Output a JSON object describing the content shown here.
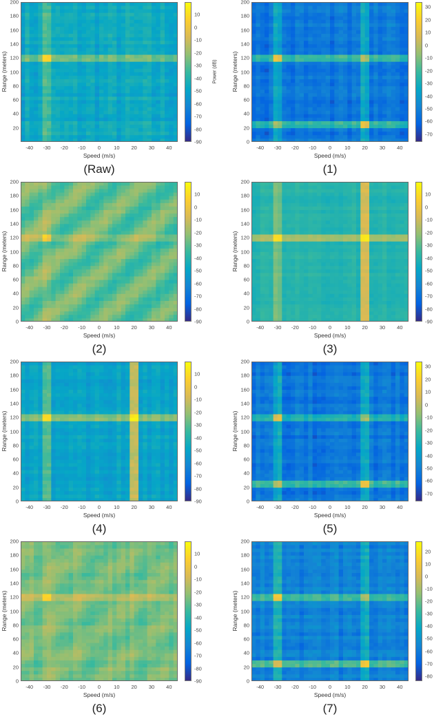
{
  "chart_data": [
    {
      "type": "heatmap",
      "caption": "(Raw)",
      "xlabel": "Speed (m/s)",
      "ylabel": "Range (meters)",
      "colorbar_label": "Power (dB)",
      "xlim": [
        -45,
        45
      ],
      "ylim": [
        0,
        200
      ],
      "xticks": [
        -40,
        -30,
        -20,
        -10,
        0,
        10,
        20,
        30,
        40
      ],
      "yticks": [
        20,
        40,
        60,
        80,
        100,
        120,
        140,
        160,
        180,
        200
      ],
      "clim": [
        -90,
        20
      ],
      "cticks": [
        10,
        0,
        -10,
        -20,
        -30,
        -40,
        -50,
        -60,
        -70,
        -80,
        -90
      ],
      "colormap": "parula",
      "targets": [
        {
          "speed": -30,
          "range": 120
        }
      ]
    },
    {
      "type": "heatmap",
      "caption": "(1)",
      "xlabel": "Speed (m/s)",
      "ylabel": "Range (meters)",
      "xlim": [
        -45,
        45
      ],
      "ylim": [
        0,
        200
      ],
      "xticks": [
        -40,
        -30,
        -20,
        -10,
        0,
        10,
        20,
        30,
        40
      ],
      "yticks": [
        0,
        20,
        40,
        60,
        80,
        100,
        120,
        140,
        160,
        180,
        200
      ],
      "clim": [
        -76,
        34
      ],
      "cticks": [
        30,
        20,
        10,
        0,
        -10,
        -20,
        -30,
        -40,
        -50,
        -60,
        -70
      ],
      "colormap": "parula",
      "targets": [
        {
          "speed": -30,
          "range": 120
        },
        {
          "speed": 20,
          "range": 25
        }
      ]
    },
    {
      "type": "heatmap",
      "caption": "(2)",
      "xlabel": "Speed (m/s)",
      "ylabel": "Range (meters)",
      "xlim": [
        -45,
        45
      ],
      "ylim": [
        0,
        200
      ],
      "xticks": [
        -40,
        -30,
        -20,
        -10,
        0,
        10,
        20,
        30,
        40
      ],
      "yticks": [
        0,
        20,
        40,
        60,
        80,
        100,
        120,
        140,
        160,
        180,
        200
      ],
      "clim": [
        -90,
        20
      ],
      "cticks": [
        10,
        0,
        -10,
        -20,
        -30,
        -40,
        -50,
        -60,
        -70,
        -80,
        -90
      ],
      "colormap": "parula",
      "targets": [
        {
          "speed": -30,
          "range": 120
        }
      ]
    },
    {
      "type": "heatmap",
      "caption": "(3)",
      "xlabel": "Speed (m/s)",
      "ylabel": "Range (meters)",
      "xlim": [
        -45,
        45
      ],
      "ylim": [
        0,
        200
      ],
      "xticks": [
        -40,
        -30,
        -20,
        -10,
        0,
        10,
        20,
        30,
        40
      ],
      "yticks": [
        0,
        20,
        40,
        60,
        80,
        100,
        120,
        140,
        160,
        180,
        200
      ],
      "clim": [
        -90,
        20
      ],
      "cticks": [
        10,
        0,
        -10,
        -20,
        -30,
        -40,
        -50,
        -60,
        -70,
        -80,
        -90
      ],
      "colormap": "parula",
      "targets": [
        {
          "speed": -30,
          "range": 120
        },
        {
          "speed": 20,
          "range": null
        }
      ]
    },
    {
      "type": "heatmap",
      "caption": "(4)",
      "xlabel": "Speed (m/s)",
      "ylabel": "Range (meters)",
      "xlim": [
        -45,
        45
      ],
      "ylim": [
        0,
        200
      ],
      "xticks": [
        -40,
        -30,
        -20,
        -10,
        0,
        10,
        20,
        30,
        40
      ],
      "yticks": [
        0,
        20,
        40,
        60,
        80,
        100,
        120,
        140,
        160,
        180,
        200
      ],
      "clim": [
        -90,
        20
      ],
      "cticks": [
        10,
        0,
        -10,
        -20,
        -30,
        -40,
        -50,
        -60,
        -70,
        -80,
        -90
      ],
      "colormap": "parula",
      "targets": [
        {
          "speed": -30,
          "range": 120
        },
        {
          "speed": 20,
          "range": null
        }
      ]
    },
    {
      "type": "heatmap",
      "caption": "(5)",
      "xlabel": "Speed (m/s)",
      "ylabel": "Range (meters)",
      "xlim": [
        -45,
        45
      ],
      "ylim": [
        0,
        200
      ],
      "xticks": [
        -40,
        -30,
        -20,
        -10,
        0,
        10,
        20,
        30,
        40
      ],
      "yticks": [
        0,
        20,
        40,
        60,
        80,
        100,
        120,
        140,
        160,
        180,
        200
      ],
      "clim": [
        -76,
        34
      ],
      "cticks": [
        30,
        20,
        10,
        0,
        -10,
        -20,
        -30,
        -40,
        -50,
        -60,
        -70
      ],
      "colormap": "parula",
      "targets": [
        {
          "speed": -30,
          "range": 120
        },
        {
          "speed": 20,
          "range": 25
        }
      ]
    },
    {
      "type": "heatmap",
      "caption": "(6)",
      "xlabel": "Speed (m/s)",
      "ylabel": "Range (meters)",
      "xlim": [
        -45,
        45
      ],
      "ylim": [
        0,
        200
      ],
      "xticks": [
        -40,
        -30,
        -20,
        -10,
        0,
        10,
        20,
        30,
        40
      ],
      "yticks": [
        0,
        20,
        40,
        60,
        80,
        100,
        120,
        140,
        160,
        180,
        200
      ],
      "clim": [
        -90,
        20
      ],
      "cticks": [
        10,
        0,
        -10,
        -20,
        -30,
        -40,
        -50,
        -60,
        -70,
        -80,
        -90
      ],
      "colormap": "parula",
      "targets": [
        {
          "speed": -30,
          "range": 120
        }
      ]
    },
    {
      "type": "heatmap",
      "caption": "(7)",
      "xlabel": "Speed (m/s)",
      "ylabel": "Range (meters)",
      "xlim": [
        -45,
        45
      ],
      "ylim": [
        0,
        200
      ],
      "xticks": [
        -40,
        -30,
        -20,
        -10,
        0,
        10,
        20,
        30,
        40
      ],
      "yticks": [
        0,
        20,
        40,
        60,
        80,
        100,
        120,
        140,
        160,
        180,
        200
      ],
      "clim": [
        -84,
        28
      ],
      "cticks": [
        20,
        10,
        0,
        -10,
        -20,
        -30,
        -40,
        -50,
        -60,
        -70,
        -80
      ],
      "colormap": "parula",
      "targets": [
        {
          "speed": -30,
          "range": 120
        },
        {
          "speed": 20,
          "range": 25
        }
      ]
    }
  ]
}
